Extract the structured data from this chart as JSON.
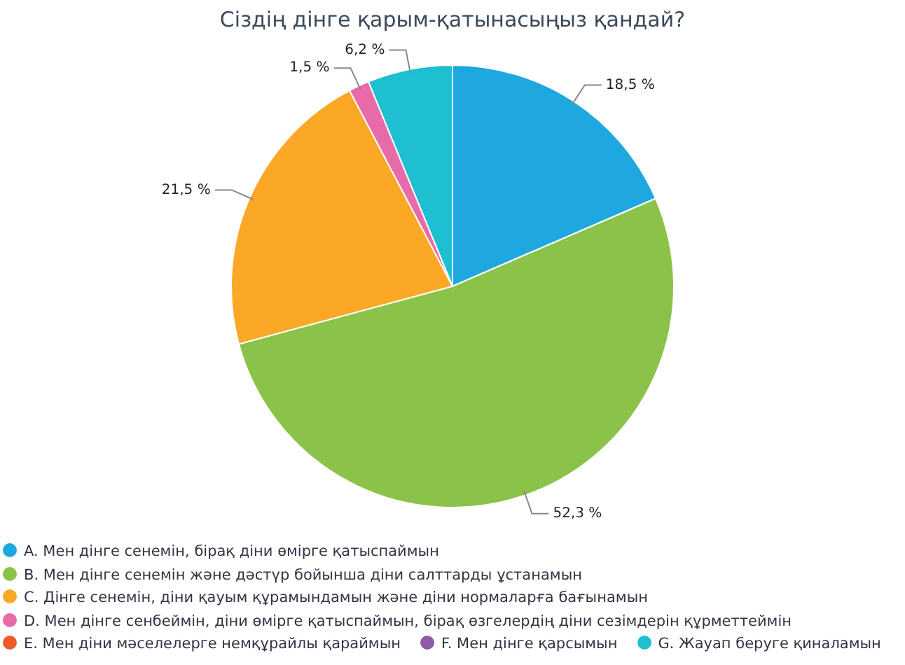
{
  "chart_data": {
    "type": "pie",
    "title": "Сіздің дінге қарым-қатынасыңыз қандай?",
    "categories": [
      "A. Мен дінге сенемін, бірақ діни өмірге қатыспаймын",
      "B. Мен дінге сенемін және дәстүр бойынша діни салттарды ұстанамын",
      "C. Дінге сенемін, діни қауым құрамындамын және діни нормаларға бағынамын",
      "D. Мен дінге сенбеймін, діни өмірге қатыспаймын, бірақ өзгелердің діни сезімдерін құрметтеймін",
      "E. Мен діни мәселелерге немқұрайлы қараймын",
      "F. Мен дінге қарсымын",
      "G. Жауап беруге қиналамын"
    ],
    "values": [
      18.5,
      52.3,
      21.5,
      1.5,
      0,
      0,
      6.2
    ],
    "colors": [
      "#1fa8e0",
      "#8bc34a",
      "#fba826",
      "#e86aa8",
      "#f05a28",
      "#8e5ba8",
      "#1dbfd0"
    ],
    "value_labels": [
      "18,5 %",
      "52,3 %",
      "21,5 %",
      "1,5 %",
      null,
      null,
      "6,2 %"
    ],
    "legend": "bottom left"
  }
}
